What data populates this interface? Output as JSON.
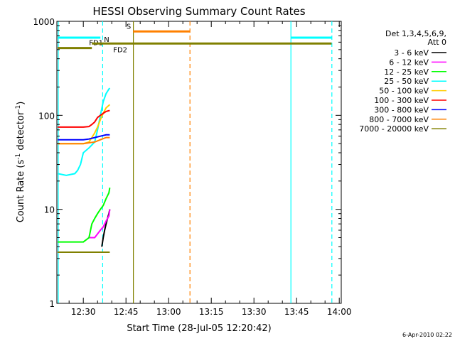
{
  "chart_data": {
    "type": "line",
    "title": "HESSI Observing Summary Count Rates",
    "xlabel": "Start Time (28-Jul-05 12:20:42)",
    "ylabel_main": "Count Rate (s",
    "ylabel_sup1": "-1",
    "ylabel_mid": " detector",
    "ylabel_sup2": "-1",
    "ylabel_end": ")",
    "yscale": "log",
    "ylim": [
      1,
      1000
    ],
    "xlim_minutes": [
      20.7,
      120.7
    ],
    "x_ticks": [
      {
        "m": 30,
        "label": "12:30"
      },
      {
        "m": 45,
        "label": "12:45"
      },
      {
        "m": 60,
        "label": "13:00"
      },
      {
        "m": 75,
        "label": "13:15"
      },
      {
        "m": 90,
        "label": "13:30"
      },
      {
        "m": 105,
        "label": "13:45"
      },
      {
        "m": 120,
        "label": "14:00"
      }
    ],
    "y_ticks": [
      {
        "v": 1,
        "label": "1"
      },
      {
        "v": 10,
        "label": "10"
      },
      {
        "v": 100,
        "label": "100"
      },
      {
        "v": 1000,
        "label": "1000"
      }
    ],
    "legend": {
      "header1": "Det 1,3,4,5,6,9,",
      "header2": "Att 0",
      "placement": "right"
    },
    "series": [
      {
        "name": "3 - 6 keV",
        "color": "#000000",
        "x": [
          36.5,
          37,
          37.5,
          38,
          38.5,
          39,
          39.3
        ],
        "y": [
          4,
          5,
          6,
          7,
          8,
          9,
          10
        ]
      },
      {
        "name": "6 - 12 keV",
        "color": "#ff00ff",
        "x": [
          32,
          34,
          36,
          37,
          38,
          39,
          39.3
        ],
        "y": [
          5,
          5,
          6,
          6.5,
          7.5,
          8.5,
          10
        ]
      },
      {
        "name": "12 - 25 keV",
        "color": "#00ff00",
        "x": [
          21,
          24,
          27,
          30,
          32,
          33,
          34,
          35,
          36,
          37,
          38,
          39,
          39.3
        ],
        "y": [
          4.5,
          4.5,
          4.5,
          4.5,
          5,
          7,
          8,
          9,
          10,
          11,
          13,
          15,
          17
        ]
      },
      {
        "name": "25 - 50 keV",
        "color": "#00ffff",
        "x": [
          21,
          24,
          27,
          28,
          29,
          30,
          32,
          34,
          35,
          36,
          37,
          38,
          39,
          39.3
        ],
        "y": [
          24,
          23,
          24,
          26,
          30,
          40,
          45,
          52,
          70,
          100,
          140,
          170,
          190,
          195
        ]
      },
      {
        "name": "50 - 100 keV",
        "color": "#ffcc00",
        "x": [
          21,
          30,
          32,
          33,
          34,
          35,
          36,
          37,
          38,
          39.3
        ],
        "y": [
          50,
          50,
          52,
          58,
          65,
          75,
          90,
          105,
          120,
          130
        ]
      },
      {
        "name": "100 - 300 keV",
        "color": "#ff0000",
        "x": [
          21,
          24,
          27,
          30,
          32,
          33,
          34,
          35,
          36,
          37,
          38,
          39,
          39.3
        ],
        "y": [
          75,
          75,
          75,
          75,
          76,
          80,
          85,
          95,
          100,
          105,
          110,
          112,
          112
        ]
      },
      {
        "name": "300 - 800 keV",
        "color": "#0000ff",
        "x": [
          21,
          24,
          27,
          30,
          32,
          34,
          36,
          38,
          39.3
        ],
        "y": [
          55,
          55,
          55,
          55,
          56,
          58,
          60,
          62,
          62
        ]
      },
      {
        "name": "800 - 7000 keV",
        "color": "#ff8000",
        "x": [
          21,
          24,
          27,
          30,
          32,
          34,
          36,
          38,
          39.3
        ],
        "y": [
          50,
          50,
          50,
          50,
          51,
          52,
          55,
          58,
          58
        ]
      },
      {
        "name": "7000 - 20000 keV",
        "color": "#808000",
        "x": [
          21,
          24,
          27,
          30,
          32,
          34,
          36,
          38,
          39.3
        ],
        "y": [
          3.5,
          3.5,
          3.5,
          3.5,
          3.5,
          3.5,
          3.5,
          3.5,
          3.5
        ]
      }
    ],
    "flag_bars": [
      {
        "label": "N",
        "color": "#00ffff",
        "x_start": 21,
        "x_end": 36,
        "y": 670
      },
      {
        "label": "",
        "color": "#00ffff",
        "x_start": 103,
        "x_end": 117.3,
        "y": 670
      },
      {
        "label": "S",
        "color": "#ff8000",
        "x_start": 47.5,
        "x_end": 67.5,
        "y": 780
      },
      {
        "label": "FD1",
        "color": "#808000",
        "x_start": 21,
        "x_end": 33,
        "y": 520
      },
      {
        "label": "FD2",
        "color": "#808000",
        "x_start": 33,
        "x_end": 117.3,
        "y": 580
      }
    ],
    "vlines": [
      {
        "x": 21.2,
        "color": "#00ffff",
        "style": "solid"
      },
      {
        "x": 36.8,
        "color": "#00ffff",
        "style": "dashed"
      },
      {
        "x": 47.6,
        "color": "#808000",
        "style": "solid"
      },
      {
        "x": 67.5,
        "color": "#ff8000",
        "style": "dashed"
      },
      {
        "x": 103,
        "color": "#00ffff",
        "style": "solid"
      },
      {
        "x": 117.4,
        "color": "#00ffff",
        "style": "dashed"
      }
    ],
    "timestamp": "6-Apr-2010 02:22"
  }
}
